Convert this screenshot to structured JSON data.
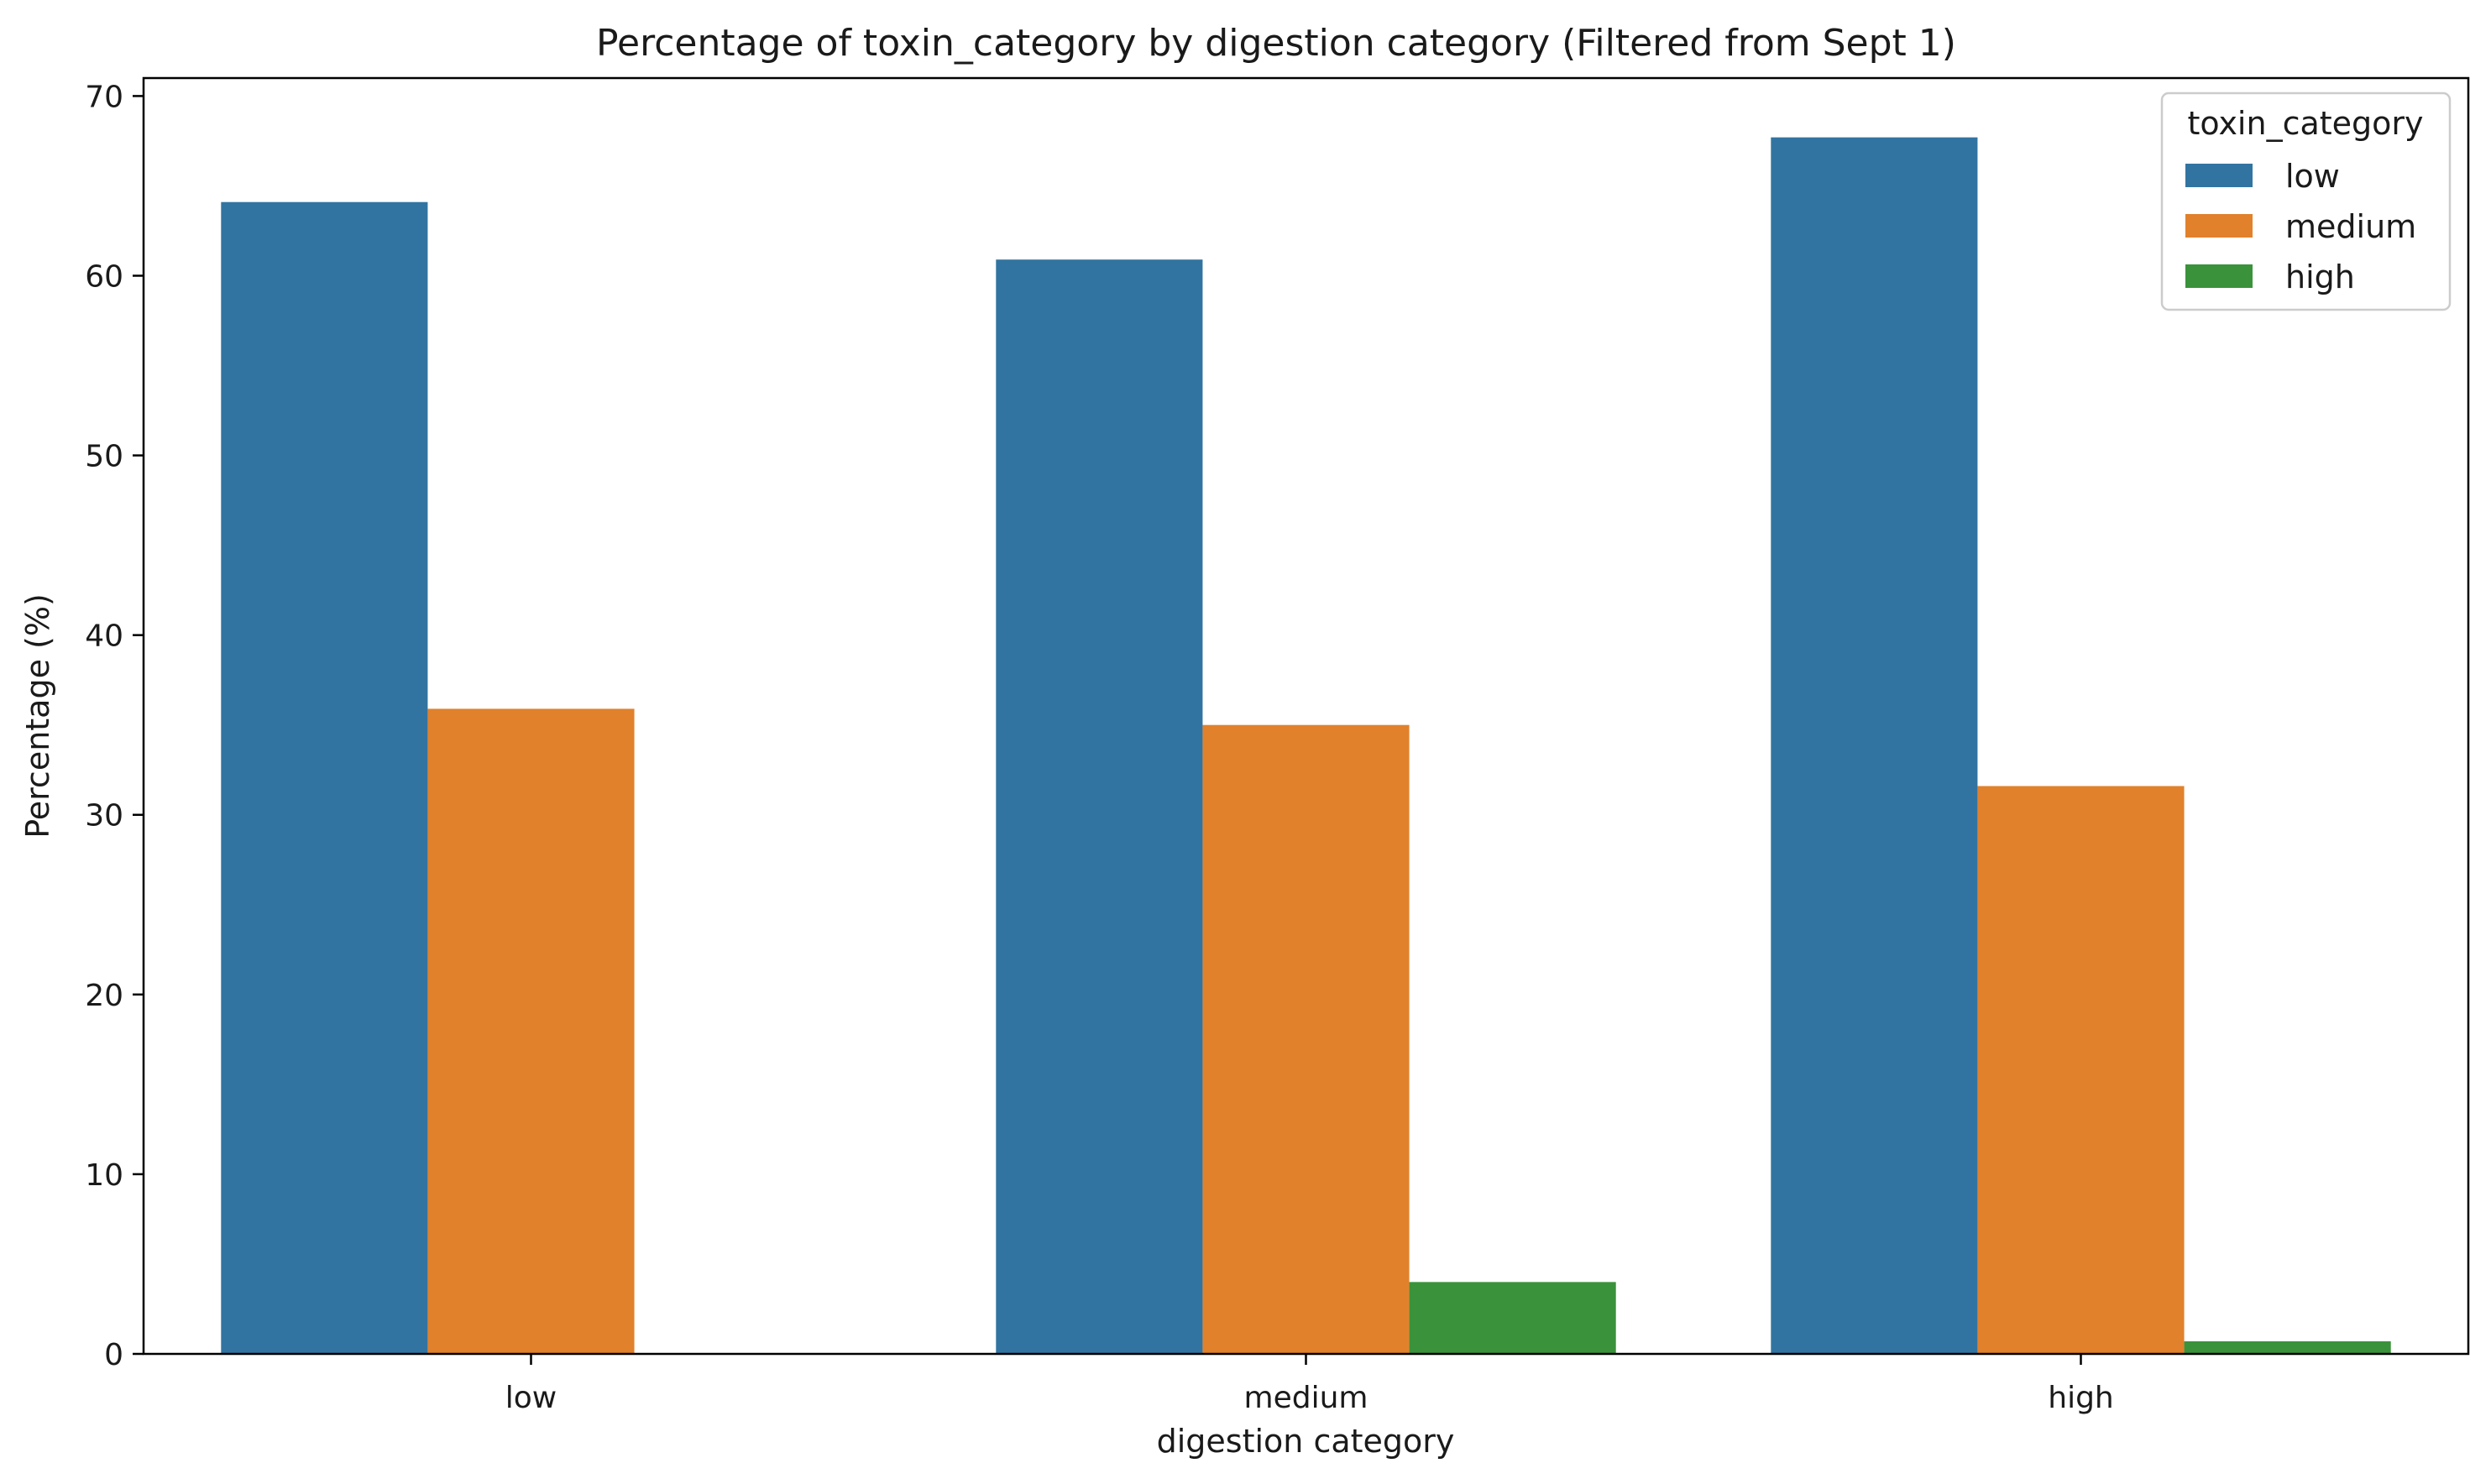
{
  "chart_data": {
    "type": "bar",
    "title": "Percentage of toxin_category by digestion category (Filtered from Sept 1)",
    "xlabel": "digestion category",
    "ylabel": "Percentage (%)",
    "categories": [
      "low",
      "medium",
      "high"
    ],
    "series": [
      {
        "name": "low",
        "color": "#3274a1",
        "values": [
          64.1,
          60.9,
          67.7
        ]
      },
      {
        "name": "medium",
        "color": "#e1812c",
        "values": [
          35.9,
          35.0,
          31.6
        ]
      },
      {
        "name": "high",
        "color": "#3a923a",
        "values": [
          0,
          4.0,
          0.7
        ]
      }
    ],
    "ylim": [
      0,
      71
    ],
    "yticks": [
      0,
      10,
      20,
      30,
      40,
      50,
      60,
      70
    ],
    "grid": false,
    "legend": {
      "title": "toxin_category",
      "position": "top-right"
    }
  }
}
